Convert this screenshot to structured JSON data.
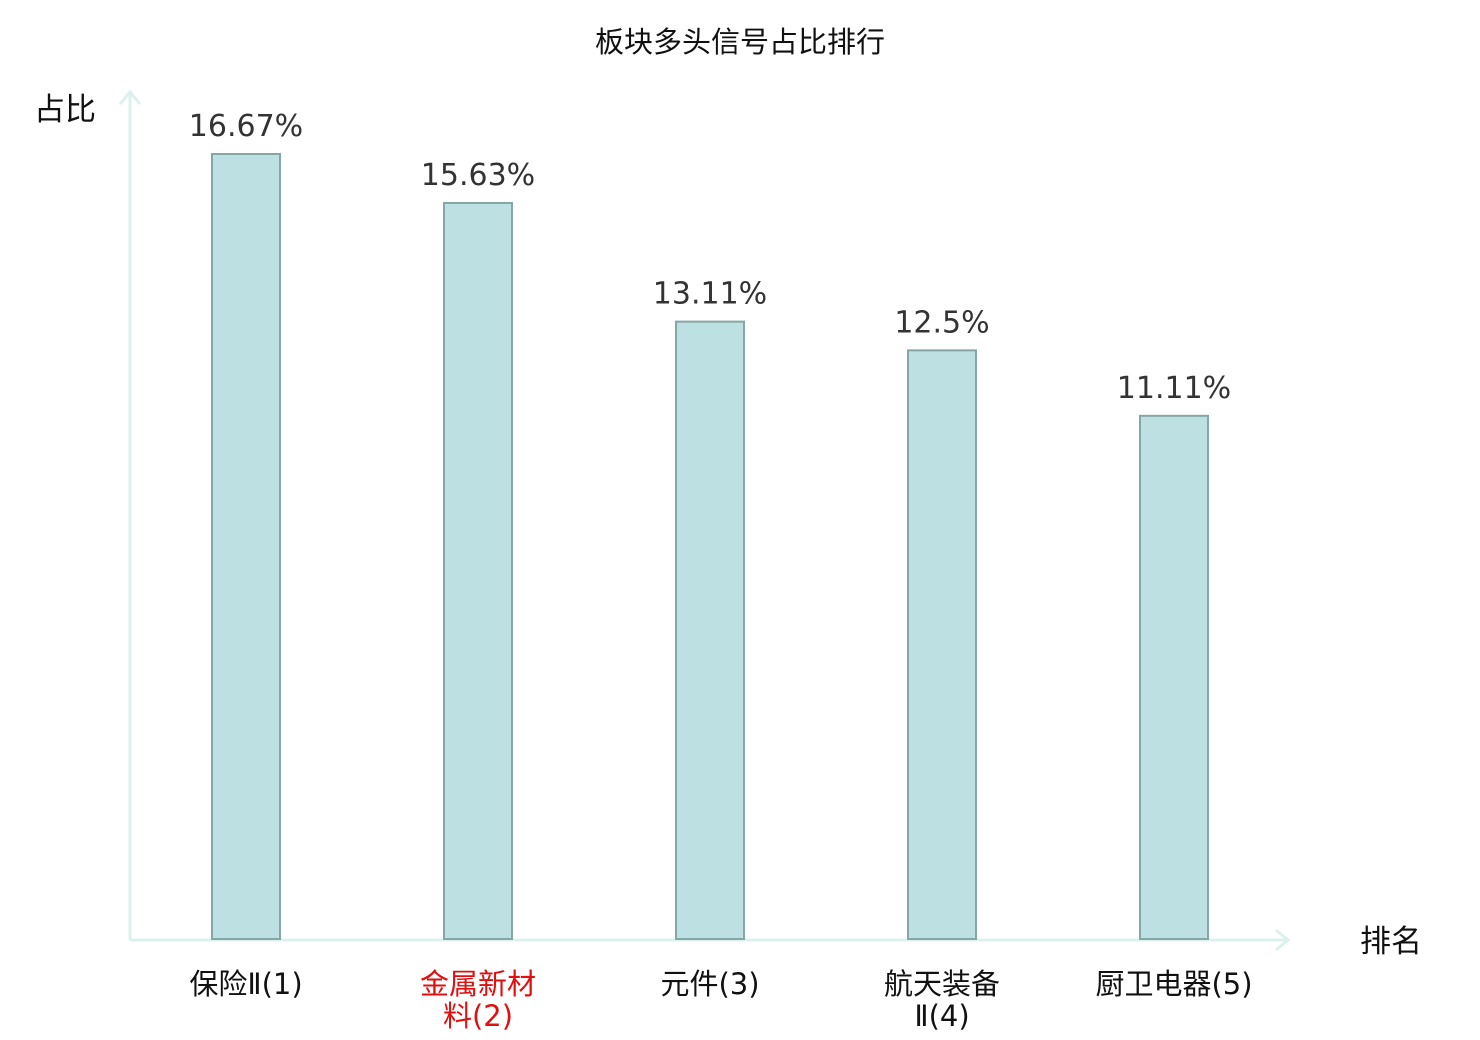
{
  "chart_data": {
    "type": "bar",
    "title": "板块多头信号占比排行",
    "xlabel": "排名",
    "ylabel": "占比",
    "categories": [
      {
        "lines": [
          "保险Ⅱ(1)"
        ],
        "highlight": false
      },
      {
        "lines": [
          "金属新材",
          "料(2)"
        ],
        "highlight": true
      },
      {
        "lines": [
          "元件(3)"
        ],
        "highlight": false
      },
      {
        "lines": [
          "航天装备",
          "Ⅱ(4)"
        ],
        "highlight": false
      },
      {
        "lines": [
          "厨卫电器(5)"
        ],
        "highlight": false
      }
    ],
    "values": [
      16.67,
      15.63,
      13.11,
      12.5,
      11.11
    ],
    "value_labels": [
      "16.67%",
      "15.63%",
      "13.11%",
      "12.5%",
      "11.11%"
    ],
    "ylim": [
      0,
      16.67
    ],
    "grid": false,
    "legend": "none",
    "colors": {
      "bar_fill": "#bde1e2",
      "bar_stroke": "#86a6a6",
      "axis": "#dcf1ee",
      "highlight_label": "#e01010"
    }
  }
}
